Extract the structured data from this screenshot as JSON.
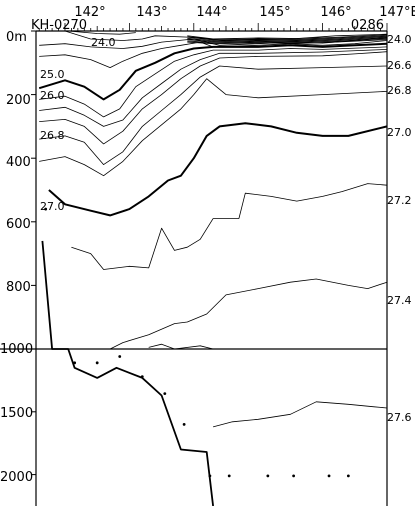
{
  "chart_data": {
    "type": "contour-section",
    "station_start": "KH-0270",
    "station_end": "0286",
    "x_unit": "E",
    "y_unit": "m",
    "x_ticks": [
      "142°",
      "143°",
      "144°",
      "145°",
      "146°",
      "147°E"
    ],
    "y_ticks_upper": [
      "0m",
      "200",
      "400",
      "600",
      "800",
      "1000"
    ],
    "y_ticks_lower": [
      "1500",
      "2000"
    ],
    "xlim": [
      141.55,
      147.0
    ],
    "ylim_upper": [
      0,
      1000
    ],
    "ylim_lower": [
      1000,
      2250
    ],
    "contours": [
      {
        "level": "24.0",
        "points": [
          [
            142.05,
            0
          ],
          [
            142.5,
            8
          ],
          [
            142.85,
            10
          ],
          [
            143.1,
            5
          ]
        ],
        "bold": false
      },
      {
        "level": "24.5",
        "points": [
          [
            142.0,
            0
          ],
          [
            142.4,
            25
          ],
          [
            142.9,
            30
          ],
          [
            143.2,
            25
          ],
          [
            143.4,
            15
          ],
          [
            144.0,
            20
          ],
          [
            144.5,
            30
          ],
          [
            145.5,
            25
          ],
          [
            146.2,
            15
          ],
          [
            147.0,
            10
          ]
        ],
        "bold": false
      },
      {
        "level": "25.0",
        "points": [
          [
            141.6,
            45
          ],
          [
            142.0,
            40
          ],
          [
            142.4,
            50
          ],
          [
            142.9,
            55
          ],
          [
            143.2,
            48
          ],
          [
            143.5,
            35
          ],
          [
            144.0,
            25
          ],
          [
            144.4,
            45
          ],
          [
            145.0,
            40
          ],
          [
            145.5,
            35
          ],
          [
            146.0,
            38
          ],
          [
            146.5,
            30
          ],
          [
            147.0,
            20
          ]
        ],
        "bold": false
      },
      {
        "level": "25.5",
        "points": [
          [
            141.6,
            80
          ],
          [
            142.0,
            75
          ],
          [
            142.4,
            90
          ],
          [
            142.7,
            115
          ],
          [
            142.9,
            95
          ],
          [
            143.2,
            70
          ],
          [
            143.5,
            55
          ],
          [
            143.8,
            45
          ],
          [
            144.1,
            35
          ],
          [
            144.3,
            50
          ],
          [
            145.0,
            45
          ],
          [
            145.5,
            40
          ],
          [
            146.0,
            45
          ],
          [
            146.5,
            40
          ],
          [
            147.0,
            30
          ]
        ],
        "bold": false
      },
      {
        "level": "26.0",
        "points": [
          [
            141.6,
            180
          ],
          [
            142.0,
            155
          ],
          [
            142.3,
            175
          ],
          [
            142.6,
            215
          ],
          [
            142.85,
            185
          ],
          [
            143.1,
            125
          ],
          [
            143.4,
            100
          ],
          [
            143.7,
            70
          ],
          [
            144.0,
            55
          ],
          [
            144.3,
            50
          ],
          [
            145.0,
            50
          ],
          [
            145.5,
            45
          ],
          [
            146.0,
            50
          ],
          [
            146.5,
            45
          ],
          [
            147.0,
            40
          ]
        ],
        "bold": true
      },
      {
        "level": "26.2",
        "points": [
          [
            141.6,
            215
          ],
          [
            142.0,
            205
          ],
          [
            142.3,
            230
          ],
          [
            142.6,
            270
          ],
          [
            142.85,
            245
          ],
          [
            143.1,
            175
          ],
          [
            143.4,
            135
          ],
          [
            143.7,
            95
          ],
          [
            144.0,
            75
          ],
          [
            144.3,
            60
          ],
          [
            145.0,
            60
          ],
          [
            145.5,
            55
          ],
          [
            146.0,
            58
          ],
          [
            147.0,
            50
          ]
        ],
        "bold": false
      },
      {
        "level": "26.4",
        "points": [
          [
            141.6,
            250
          ],
          [
            142.0,
            240
          ],
          [
            142.3,
            265
          ],
          [
            142.6,
            300
          ],
          [
            142.9,
            280
          ],
          [
            143.2,
            210
          ],
          [
            143.5,
            165
          ],
          [
            143.8,
            120
          ],
          [
            144.1,
            90
          ],
          [
            144.4,
            70
          ],
          [
            145.0,
            70
          ],
          [
            146.0,
            66
          ],
          [
            147.0,
            58
          ]
        ],
        "bold": false
      },
      {
        "level": "26.6",
        "points": [
          [
            141.6,
            285
          ],
          [
            142.0,
            278
          ],
          [
            142.3,
            300
          ],
          [
            142.6,
            355
          ],
          [
            142.9,
            315
          ],
          [
            143.2,
            245
          ],
          [
            143.5,
            200
          ],
          [
            143.8,
            150
          ],
          [
            144.1,
            110
          ],
          [
            144.4,
            85
          ],
          [
            145.0,
            80
          ],
          [
            146.0,
            78
          ],
          [
            146.5,
            72
          ],
          [
            147.0,
            65
          ]
        ],
        "bold": false
      },
      {
        "level": "26.8",
        "points": [
          [
            141.6,
            340
          ],
          [
            142.0,
            330
          ],
          [
            142.3,
            350
          ],
          [
            142.6,
            420
          ],
          [
            142.9,
            380
          ],
          [
            143.2,
            300
          ],
          [
            143.5,
            250
          ],
          [
            143.8,
            200
          ],
          [
            144.1,
            145
          ],
          [
            144.4,
            110
          ],
          [
            145.0,
            120
          ],
          [
            146.0,
            115
          ],
          [
            147.0,
            110
          ]
        ],
        "bold": false
      },
      {
        "level": "26.9",
        "points": [
          [
            141.6,
            410
          ],
          [
            142.0,
            395
          ],
          [
            142.3,
            420
          ],
          [
            142.6,
            455
          ],
          [
            142.9,
            410
          ],
          [
            143.2,
            345
          ],
          [
            143.5,
            295
          ],
          [
            143.8,
            245
          ],
          [
            144.0,
            200
          ],
          [
            144.2,
            150
          ],
          [
            144.5,
            200
          ],
          [
            145.0,
            210
          ],
          [
            146.0,
            200
          ],
          [
            147.0,
            190
          ]
        ],
        "bold": false
      },
      {
        "level": "27.0",
        "points": [
          [
            141.75,
            500
          ],
          [
            142.0,
            545
          ],
          [
            142.4,
            565
          ],
          [
            142.7,
            580
          ],
          [
            143.0,
            560
          ],
          [
            143.3,
            520
          ],
          [
            143.6,
            470
          ],
          [
            143.8,
            455
          ],
          [
            144.0,
            400
          ],
          [
            144.2,
            330
          ],
          [
            144.4,
            300
          ],
          [
            144.8,
            290
          ],
          [
            145.2,
            300
          ],
          [
            145.6,
            320
          ],
          [
            146.0,
            330
          ],
          [
            146.4,
            330
          ],
          [
            147.0,
            300
          ]
        ],
        "bold": true
      },
      {
        "level": "27.2",
        "points": [
          [
            144.7,
            590
          ],
          [
            144.8,
            510
          ],
          [
            145.2,
            520
          ],
          [
            145.6,
            535
          ],
          [
            146.0,
            520
          ],
          [
            146.3,
            505
          ],
          [
            146.7,
            480
          ],
          [
            147.0,
            485
          ]
        ],
        "bold": false
      },
      {
        "level": "27.2b",
        "points": [
          [
            142.1,
            680
          ],
          [
            142.4,
            700
          ],
          [
            142.6,
            750
          ],
          [
            143.0,
            740
          ],
          [
            143.3,
            745
          ],
          [
            143.5,
            620
          ],
          [
            143.7,
            690
          ],
          [
            143.9,
            680
          ],
          [
            144.1,
            655
          ],
          [
            144.3,
            590
          ],
          [
            144.7,
            590
          ]
        ],
        "bold": false
      },
      {
        "level": "27.4",
        "points": [
          [
            142.7,
            1000
          ],
          [
            142.9,
            980
          ],
          [
            143.3,
            955
          ],
          [
            143.7,
            920
          ],
          [
            143.9,
            915
          ],
          [
            144.2,
            890
          ],
          [
            144.5,
            830
          ],
          [
            145.0,
            810
          ],
          [
            145.5,
            790
          ],
          [
            145.9,
            780
          ],
          [
            146.4,
            800
          ],
          [
            146.7,
            810
          ],
          [
            147.0,
            790
          ]
        ],
        "bold": false
      },
      {
        "level": "27.4b",
        "points": [
          [
            143.3,
            995
          ],
          [
            143.5,
            985
          ],
          [
            143.7,
            1000
          ]
        ],
        "bold": false
      },
      {
        "level": "27.5",
        "points": [
          [
            143.7,
            1000
          ],
          [
            144.1,
            990
          ],
          [
            144.3,
            1000
          ]
        ],
        "bold": false
      },
      {
        "level": "27.6",
        "points": [
          [
            144.3,
            1620
          ],
          [
            144.6,
            1580
          ],
          [
            145.0,
            1560
          ],
          [
            145.5,
            1520
          ],
          [
            145.9,
            1420
          ],
          [
            146.4,
            1440
          ],
          [
            146.8,
            1460
          ],
          [
            147.0,
            1470
          ]
        ],
        "bold": false
      }
    ],
    "bottom": [
      [
        141.65,
        660
      ],
      [
        141.8,
        1000
      ],
      [
        142.05,
        1000
      ],
      [
        142.15,
        1150
      ],
      [
        142.5,
        1230
      ],
      [
        142.8,
        1150
      ],
      [
        143.2,
        1230
      ],
      [
        143.5,
        1370
      ],
      [
        143.8,
        1800
      ],
      [
        144.2,
        1820
      ],
      [
        144.3,
        2250
      ]
    ],
    "stations": [
      [
        141.7,
        560
      ],
      [
        142.15,
        1110
      ],
      [
        142.5,
        1110
      ],
      [
        142.85,
        1060
      ],
      [
        143.2,
        1220
      ],
      [
        143.55,
        1355
      ],
      [
        143.85,
        1600
      ],
      [
        144.25,
        2010
      ],
      [
        144.55,
        2010
      ],
      [
        145.15,
        2010
      ],
      [
        145.55,
        2010
      ],
      [
        146.1,
        2010
      ],
      [
        146.4,
        2010
      ]
    ],
    "labels": {
      "contour_24_0_top": "24.0",
      "contour_24_0_right": "24.0",
      "contour_25_0": "25.0",
      "contour_26_0": "26.0",
      "contour_26_6": "26.6",
      "contour_26_8_left": "26.8",
      "contour_26_8_right": "26.8",
      "contour_27_0_left": "27.0",
      "contour_27_0_right": "27.0",
      "contour_27_2": "27.2",
      "contour_27_4": "27.4",
      "contour_27_6": "27.6"
    }
  }
}
